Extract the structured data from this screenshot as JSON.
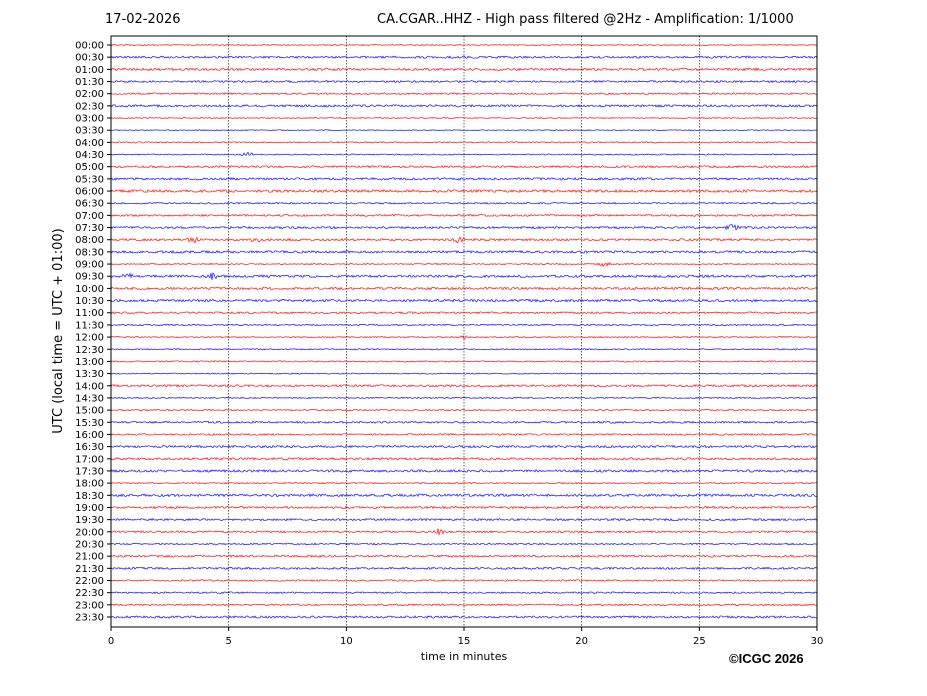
{
  "header": {
    "date": "17-02-2026",
    "title": "CA.CGAR..HHZ - High pass filtered @2Hz - Amplification: 1/1000"
  },
  "copyright": "©ICGC 2026",
  "chart_data": {
    "type": "line",
    "subtype": "helicorder",
    "xlabel": "time in minutes",
    "ylabel": "UTC (local time = UTC + 01:00)",
    "xlim": [
      0,
      30
    ],
    "xticks": [
      0,
      5,
      10,
      15,
      20,
      25,
      30
    ],
    "grid": "vertical dotted at x ticks",
    "row_colors": [
      "#ff0000",
      "#0000ff"
    ],
    "rows": [
      "00:00",
      "00:30",
      "01:00",
      "01:30",
      "02:00",
      "02:30",
      "03:00",
      "03:30",
      "04:00",
      "04:30",
      "05:00",
      "05:30",
      "06:00",
      "06:30",
      "07:00",
      "07:30",
      "08:00",
      "08:30",
      "09:00",
      "09:30",
      "10:00",
      "10:30",
      "11:00",
      "11:30",
      "12:00",
      "12:30",
      "13:00",
      "13:30",
      "14:00",
      "14:30",
      "15:00",
      "15:30",
      "16:00",
      "16:30",
      "17:00",
      "17:30",
      "18:00",
      "18:30",
      "19:00",
      "19:30",
      "20:00",
      "20:30",
      "21:00",
      "21:30",
      "22:00",
      "22:30",
      "23:00",
      "23:30"
    ],
    "events": [
      {
        "row": "04:30",
        "minute": 5.8
      },
      {
        "row": "07:30",
        "minute": 26.4
      },
      {
        "row": "08:00",
        "minute": 3.5
      },
      {
        "row": "08:00",
        "minute": 6.2
      },
      {
        "row": "08:00",
        "minute": 14.8
      },
      {
        "row": "09:00",
        "minute": 21.0
      },
      {
        "row": "09:30",
        "minute": 0.7
      },
      {
        "row": "09:30",
        "minute": 4.3
      },
      {
        "row": "12:00",
        "minute": 15.0
      },
      {
        "row": "20:00",
        "minute": 13.9
      }
    ]
  }
}
